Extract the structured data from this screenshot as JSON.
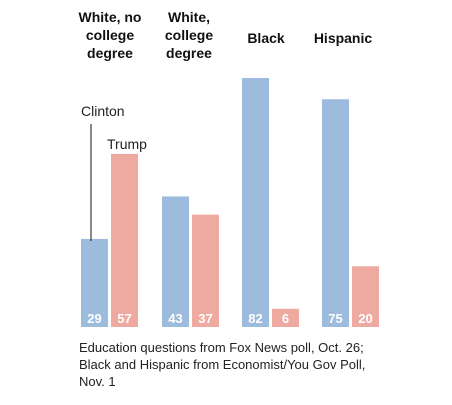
{
  "chart_data": {
    "type": "bar",
    "categories": [
      [
        "White, no",
        "college",
        "degree"
      ],
      [
        "White,",
        "college",
        "degree"
      ],
      [
        "Black"
      ],
      [
        "Hispanic"
      ]
    ],
    "series": [
      {
        "name": "Clinton",
        "color": "#9dbbdc",
        "values": [
          29,
          43,
          82,
          75
        ]
      },
      {
        "name": "Trump",
        "color": "#eea9a0",
        "values": [
          57,
          37,
          6,
          20
        ]
      }
    ],
    "ylim": [
      0,
      82
    ],
    "grid": false
  },
  "note": {
    "lines": [
      "Education questions from Fox News poll, Oct. 26;",
      "Black and Hispanic from Economist/You Gov Poll,",
      "Nov. 1"
    ]
  }
}
